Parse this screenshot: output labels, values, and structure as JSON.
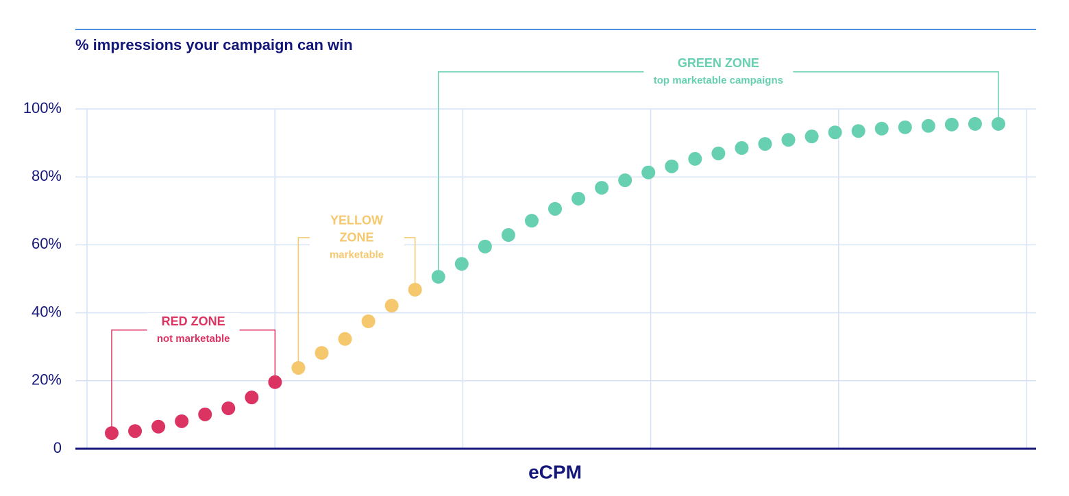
{
  "chart_data": {
    "type": "scatter",
    "title": "% impressions your campaign can win",
    "x_label": "eCPM",
    "categories": [
      null,
      null,
      null,
      null,
      null,
      null,
      null,
      null,
      null,
      null,
      null,
      null,
      null,
      null,
      null,
      null,
      null,
      null,
      null,
      null,
      null,
      null,
      null,
      null,
      null,
      null,
      null,
      null,
      null,
      null,
      null,
      null,
      null,
      null,
      null,
      null,
      null,
      null,
      null
    ],
    "series": [
      {
        "name": "RED ZONE",
        "note": "not marketable",
        "color": "#dc3462",
        "values": [
          4.6,
          5.2,
          6.5,
          8.1,
          10.1,
          11.9,
          15.1,
          19.6,
          null,
          null,
          null,
          null,
          null,
          null,
          null,
          null,
          null,
          null,
          null,
          null,
          null,
          null,
          null,
          null,
          null,
          null,
          null,
          null,
          null,
          null,
          null,
          null,
          null,
          null,
          null,
          null,
          null,
          null,
          null
        ]
      },
      {
        "name": "YELLOW ZONE",
        "note": "marketable",
        "color": "#f5c86e",
        "values": [
          null,
          null,
          null,
          null,
          null,
          null,
          null,
          null,
          23.8,
          28.2,
          32.3,
          37.5,
          42.1,
          46.8,
          null,
          null,
          null,
          null,
          null,
          null,
          null,
          null,
          null,
          null,
          null,
          null,
          null,
          null,
          null,
          null,
          null,
          null,
          null,
          null,
          null,
          null,
          null,
          null,
          null
        ]
      },
      {
        "name": "GREEN ZONE",
        "note": "top marketable campaigns",
        "color": "#67d0b1",
        "values": [
          null,
          null,
          null,
          null,
          null,
          null,
          null,
          null,
          null,
          null,
          null,
          null,
          null,
          null,
          50.6,
          54.4,
          59.5,
          62.9,
          67.1,
          70.6,
          73.6,
          76.8,
          79.0,
          81.3,
          83.1,
          85.3,
          86.9,
          88.5,
          89.7,
          90.9,
          91.9,
          93.1,
          93.5,
          94.2,
          94.6,
          95.0,
          95.4,
          95.6,
          95.6
        ]
      }
    ],
    "ylim": [
      0,
      100
    ],
    "yticks": [
      0,
      {
        "value": 20,
        "label": "20%"
      },
      {
        "value": 40,
        "label": "40%"
      },
      {
        "value": 60,
        "label": "60%"
      },
      {
        "value": 80,
        "label": "80%"
      },
      {
        "value": 100,
        "label": "100%"
      }
    ],
    "grid": true
  }
}
